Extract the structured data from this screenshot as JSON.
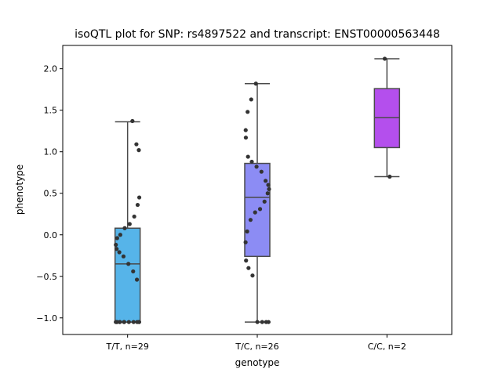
{
  "chart_data": {
    "type": "box",
    "title": "isoQTL plot for SNP: rs4897522 and transcript: ENST00000563448",
    "xlabel": "genotype",
    "ylabel": "phenotype",
    "ylim": [
      -1.2,
      2.28
    ],
    "yticks": [
      -1.0,
      -0.5,
      0.0,
      0.5,
      1.0,
      1.5,
      2.0
    ],
    "ytick_labels": [
      "−1.0",
      "−0.5",
      "0.0",
      "0.5",
      "1.0",
      "1.5",
      "2.0"
    ],
    "grid": false,
    "categories": [
      "T/T, n=29",
      "T/C, n=26",
      "C/C, n=2"
    ],
    "colors": [
      "#56b4e9",
      "#8c8cf4",
      "#b44fed"
    ],
    "boxes": [
      {
        "min": -1.05,
        "q1": -1.05,
        "median": -0.35,
        "q3": 0.08,
        "max": 1.36
      },
      {
        "min": -1.05,
        "q1": -0.26,
        "median": 0.45,
        "q3": 0.86,
        "max": 1.82
      },
      {
        "min": 0.7,
        "q1": 1.05,
        "median": 1.41,
        "q3": 1.76,
        "max": 2.12
      }
    ],
    "points": [
      [
        1.37,
        1.09,
        1.02,
        0.45,
        0.36,
        0.22,
        0.13,
        0.08,
        0.0,
        -0.04,
        -0.12,
        -0.17,
        -0.21,
        -0.26,
        -0.35,
        -0.44,
        -0.54,
        -1.05,
        -1.05,
        -1.05,
        -1.05,
        -1.05,
        -1.05,
        -1.05,
        -1.05,
        -1.05,
        -1.05,
        -1.05,
        -1.05
      ],
      [
        1.82,
        1.63,
        1.48,
        1.26,
        1.17,
        0.94,
        0.88,
        0.82,
        0.76,
        0.65,
        0.6,
        0.55,
        0.5,
        0.4,
        0.31,
        0.27,
        0.18,
        0.04,
        -0.09,
        -0.31,
        -0.4,
        -0.49,
        -1.05,
        -1.05,
        -1.05,
        -1.05
      ],
      [
        2.12,
        0.7
      ]
    ]
  }
}
